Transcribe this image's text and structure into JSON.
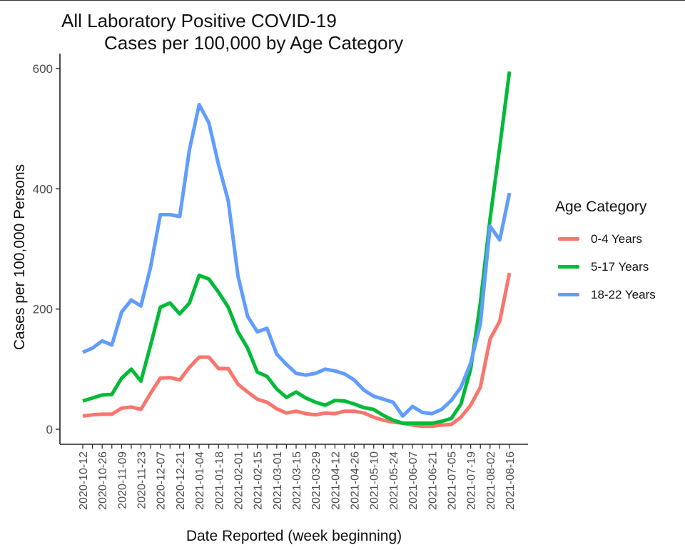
{
  "chart_data": {
    "type": "line",
    "title_line1": "All Laboratory Positive COVID-19",
    "title_line2": "Cases per 100,000 by Age Category",
    "xlabel": "Date Reported (week beginning)",
    "ylabel": "Cases per 100,000 Persons",
    "ylim": [
      -25,
      625
    ],
    "yticks": [
      0,
      200,
      400,
      600
    ],
    "grid": false,
    "legend": {
      "title": "Age Category",
      "position": "right"
    },
    "x": [
      "2020-10-12",
      "2020-10-19",
      "2020-10-26",
      "2020-11-02",
      "2020-11-09",
      "2020-11-16",
      "2020-11-23",
      "2020-11-30",
      "2020-12-07",
      "2020-12-14",
      "2020-12-21",
      "2020-12-28",
      "2021-01-04",
      "2021-01-11",
      "2021-01-18",
      "2021-01-25",
      "2021-02-01",
      "2021-02-08",
      "2021-02-15",
      "2021-02-22",
      "2021-03-01",
      "2021-03-08",
      "2021-03-15",
      "2021-03-22",
      "2021-03-29",
      "2021-04-05",
      "2021-04-12",
      "2021-04-19",
      "2021-04-26",
      "2021-05-03",
      "2021-05-10",
      "2021-05-17",
      "2021-05-24",
      "2021-05-31",
      "2021-06-07",
      "2021-06-14",
      "2021-06-21",
      "2021-06-28",
      "2021-07-05",
      "2021-07-12",
      "2021-07-19",
      "2021-07-26",
      "2021-08-02",
      "2021-08-09",
      "2021-08-16"
    ],
    "xtick_labels": [
      "2020-10-12",
      "2020-10-26",
      "2020-11-09",
      "2020-11-23",
      "2020-12-07",
      "2020-12-21",
      "2021-01-04",
      "2021-01-18",
      "2021-02-01",
      "2021-02-15",
      "2021-03-01",
      "2021-03-15",
      "2021-03-29",
      "2021-04-12",
      "2021-04-26",
      "2021-05-10",
      "2021-05-24",
      "2021-06-07",
      "2021-06-21",
      "2021-07-05",
      "2021-07-19",
      "2021-08-02",
      "2021-08-16"
    ],
    "series": [
      {
        "name": "0-4 Years",
        "color": "#F8766D",
        "values": [
          22,
          24,
          25,
          25,
          35,
          37,
          33,
          60,
          85,
          86,
          82,
          103,
          120,
          120,
          101,
          101,
          75,
          62,
          50,
          45,
          34,
          27,
          30,
          26,
          24,
          27,
          26,
          30,
          30,
          27,
          20,
          15,
          12,
          10,
          7,
          5,
          5,
          7,
          8,
          20,
          40,
          70,
          150,
          180,
          260
        ]
      },
      {
        "name": "5-17 Years",
        "color": "#00BA38",
        "values": [
          47,
          52,
          57,
          58,
          85,
          100,
          80,
          140,
          203,
          210,
          192,
          210,
          256,
          250,
          228,
          203,
          162,
          135,
          95,
          88,
          67,
          53,
          62,
          52,
          45,
          40,
          48,
          47,
          42,
          36,
          33,
          23,
          15,
          10,
          10,
          10,
          10,
          13,
          18,
          42,
          100,
          210,
          350,
          470,
          595
        ]
      },
      {
        "name": "18-22 Years",
        "color": "#619CFF",
        "values": [
          128,
          135,
          147,
          140,
          195,
          215,
          205,
          270,
          357,
          357,
          354,
          465,
          540,
          510,
          440,
          380,
          255,
          188,
          162,
          168,
          125,
          108,
          93,
          90,
          93,
          100,
          97,
          92,
          82,
          65,
          55,
          50,
          45,
          22,
          38,
          28,
          26,
          33,
          48,
          70,
          110,
          175,
          338,
          315,
          393
        ]
      }
    ]
  }
}
